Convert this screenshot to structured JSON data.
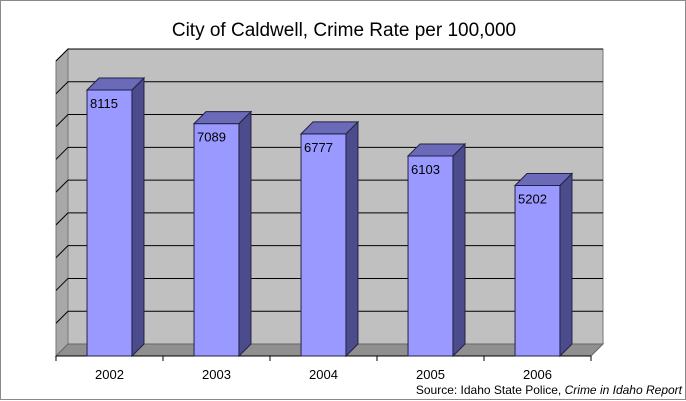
{
  "chart_data": {
    "type": "bar",
    "title": "City of Caldwell, Crime Rate per 100,000",
    "categories": [
      "2002",
      "2003",
      "2004",
      "2005",
      "2006"
    ],
    "values": [
      8115,
      7089,
      6777,
      6103,
      5202
    ],
    "data_labels": [
      "8115",
      "7089",
      "6777",
      "6103",
      "5202"
    ],
    "ylim": [
      0,
      9000
    ],
    "gridlines_every": 1000,
    "grid": true,
    "legend": "none",
    "xlabel": "",
    "ylabel": "",
    "bar_style": "3d-column"
  },
  "source": {
    "prefix": "Source: Idaho State Police, ",
    "title": "Crime in Idaho Report"
  },
  "colors": {
    "bar_front": "#9999ff",
    "bar_side": "#4c4c8c",
    "bar_top": "#6a6ab8",
    "plot_background": "#c0c0c0",
    "wall_side": "#a8a8a8",
    "gridline": "#000000"
  }
}
